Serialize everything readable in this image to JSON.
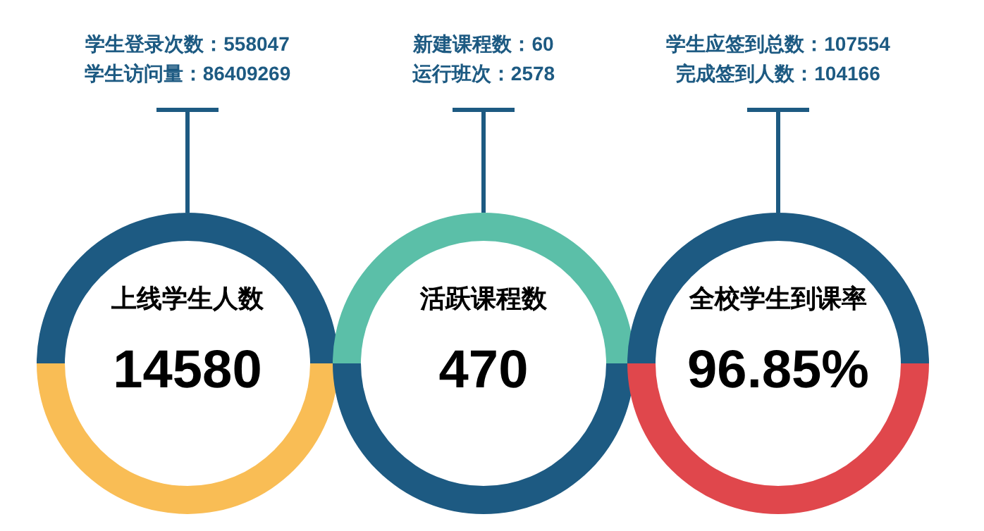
{
  "chart_data": [
    {
      "type": "donut",
      "title": "上线学生人数",
      "categories": [
        null,
        null
      ],
      "values": [
        50,
        50
      ],
      "colors": [
        "#1d5a82",
        "#f9bd55"
      ],
      "annotations": [
        "14580",
        "学生登录次数：558047",
        "学生访问量：86409269"
      ]
    },
    {
      "type": "donut",
      "title": "活跃课程数",
      "categories": [
        null,
        null
      ],
      "values": [
        50,
        50
      ],
      "colors": [
        "#5bbfa8",
        "#1d5a82"
      ],
      "annotations": [
        "470",
        "新建课程数：60",
        "运行班次：2578"
      ]
    },
    {
      "type": "donut",
      "title": "全校学生到课率",
      "categories": [
        null,
        null
      ],
      "values": [
        50,
        50
      ],
      "colors": [
        "#1d5a82",
        "#e0474c"
      ],
      "annotations": [
        "96.85%",
        "学生应签到总数：107554",
        "完成签到人数：104166"
      ]
    }
  ]
}
